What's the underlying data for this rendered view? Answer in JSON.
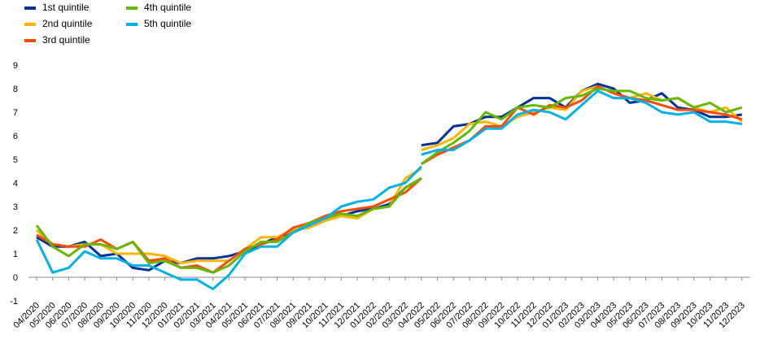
{
  "chart_data": {
    "type": "line",
    "categories": [
      "04/2020",
      "05/2020",
      "06/2020",
      "07/2020",
      "08/2020",
      "09/2020",
      "10/2020",
      "11/2020",
      "12/2020",
      "01/2021",
      "02/2021",
      "03/2021",
      "04/2021",
      "05/2021",
      "06/2021",
      "07/2021",
      "08/2021",
      "09/2021",
      "10/2021",
      "11/2021",
      "12/2021",
      "01/2022",
      "02/2022",
      "03/2022",
      "04/2022",
      "05/2022",
      "06/2022",
      "07/2022",
      "08/2022",
      "09/2022",
      "10/2022",
      "11/2022",
      "12/2022",
      "01/2023",
      "02/2023",
      "03/2023",
      "04/2023",
      "05/2023",
      "06/2023",
      "07/2023",
      "08/2023",
      "09/2023",
      "10/2023",
      "11/2023",
      "12/2023"
    ],
    "series": [
      {
        "name": "1st quintile",
        "color": "#003299",
        "values": [
          1.7,
          1.3,
          1.3,
          1.5,
          0.9,
          1.0,
          0.4,
          0.3,
          0.7,
          0.6,
          0.8,
          0.8,
          0.9,
          1.1,
          1.4,
          1.7,
          1.9,
          2.2,
          2.4,
          2.6,
          2.8,
          2.9,
          3.1,
          3.8,
          4.2,
          null,
          null,
          null,
          null,
          null,
          null,
          null,
          null,
          null,
          null,
          null,
          null,
          null,
          null,
          null,
          null,
          null,
          null,
          null,
          null
        ],
        "values_new": [
          null,
          null,
          null,
          null,
          null,
          null,
          null,
          null,
          null,
          null,
          null,
          null,
          null,
          null,
          null,
          null,
          null,
          null,
          null,
          null,
          null,
          null,
          null,
          null,
          5.6,
          5.7,
          6.4,
          6.5,
          6.8,
          6.8,
          7.2,
          7.6,
          7.6,
          7.2,
          7.9,
          8.2,
          8.0,
          7.4,
          7.5,
          7.8,
          7.2,
          7.1,
          6.8,
          6.8,
          6.9
        ]
      },
      {
        "name": "2nd quintile",
        "color": "#ffb400",
        "values": [
          2.0,
          1.4,
          1.3,
          1.4,
          1.4,
          1.0,
          1.0,
          1.0,
          0.9,
          0.6,
          0.7,
          0.7,
          0.7,
          1.2,
          1.7,
          1.7,
          2.0,
          2.1,
          2.4,
          2.6,
          2.5,
          2.9,
          3.0,
          4.2,
          4.6,
          null,
          null,
          null,
          null,
          null,
          null,
          null,
          null,
          null,
          null,
          null,
          null,
          null,
          null,
          null,
          null,
          null,
          null,
          null,
          null
        ],
        "values_new": [
          null,
          null,
          null,
          null,
          null,
          null,
          null,
          null,
          null,
          null,
          null,
          null,
          null,
          null,
          null,
          null,
          null,
          null,
          null,
          null,
          null,
          null,
          null,
          null,
          5.4,
          5.6,
          5.9,
          6.5,
          6.6,
          6.4,
          6.8,
          7.0,
          7.2,
          7.1,
          7.9,
          8.1,
          7.8,
          7.6,
          7.8,
          7.5,
          7.6,
          7.2,
          7.0,
          7.2,
          6.6
        ]
      },
      {
        "name": "3rd quintile",
        "color": "#ff4b00",
        "values": [
          1.8,
          1.4,
          1.3,
          1.3,
          1.6,
          1.2,
          1.5,
          0.7,
          0.8,
          0.4,
          0.5,
          0.2,
          0.7,
          1.2,
          1.4,
          1.6,
          2.1,
          2.3,
          2.6,
          2.8,
          2.9,
          3.0,
          3.3,
          3.6,
          4.2,
          null,
          null,
          null,
          null,
          null,
          null,
          null,
          null,
          null,
          null,
          null,
          null,
          null,
          null,
          null,
          null,
          null,
          null,
          null,
          null
        ],
        "values_new": [
          null,
          null,
          null,
          null,
          null,
          null,
          null,
          null,
          null,
          null,
          null,
          null,
          null,
          null,
          null,
          null,
          null,
          null,
          null,
          null,
          null,
          null,
          null,
          null,
          4.8,
          5.2,
          5.5,
          5.8,
          6.4,
          6.4,
          7.2,
          6.9,
          7.3,
          7.2,
          7.5,
          8.1,
          7.8,
          7.6,
          7.5,
          7.3,
          7.1,
          7.1,
          7.0,
          6.9,
          6.7
        ]
      },
      {
        "name": "4th quintile",
        "color": "#65b800",
        "values": [
          2.2,
          1.3,
          0.9,
          1.4,
          1.4,
          1.2,
          1.5,
          0.6,
          0.7,
          0.4,
          0.4,
          0.2,
          0.5,
          1.1,
          1.5,
          1.5,
          1.9,
          2.3,
          2.5,
          2.7,
          2.6,
          2.9,
          3.0,
          3.8,
          4.2,
          null,
          null,
          null,
          null,
          null,
          null,
          null,
          null,
          null,
          null,
          null,
          null,
          null,
          null,
          null,
          null,
          null,
          null,
          null,
          null
        ],
        "values_new": [
          null,
          null,
          null,
          null,
          null,
          null,
          null,
          null,
          null,
          null,
          null,
          null,
          null,
          null,
          null,
          null,
          null,
          null,
          null,
          null,
          null,
          null,
          null,
          null,
          4.8,
          5.3,
          5.7,
          6.2,
          7.0,
          6.7,
          7.2,
          7.3,
          7.2,
          7.6,
          7.7,
          8.0,
          7.9,
          7.9,
          7.6,
          7.5,
          7.6,
          7.2,
          7.4,
          7.0,
          7.2
        ]
      },
      {
        "name": "5th quintile",
        "color": "#00b1ea",
        "values": [
          1.6,
          0.2,
          0.4,
          1.1,
          0.8,
          0.8,
          0.5,
          0.5,
          0.2,
          -0.1,
          -0.1,
          -0.5,
          0.1,
          1.0,
          1.3,
          1.3,
          1.9,
          2.2,
          2.5,
          3.0,
          3.2,
          3.3,
          3.8,
          4.0,
          4.7,
          null,
          null,
          null,
          null,
          null,
          null,
          null,
          null,
          null,
          null,
          null,
          null,
          null,
          null,
          null,
          null,
          null,
          null,
          null,
          null
        ],
        "values_new": [
          null,
          null,
          null,
          null,
          null,
          null,
          null,
          null,
          null,
          null,
          null,
          null,
          null,
          null,
          null,
          null,
          null,
          null,
          null,
          null,
          null,
          null,
          null,
          null,
          5.2,
          5.4,
          5.4,
          5.8,
          6.3,
          6.3,
          6.9,
          7.1,
          7.0,
          6.7,
          7.3,
          7.9,
          7.6,
          7.6,
          7.4,
          7.0,
          6.9,
          7.0,
          6.6,
          6.6,
          6.5
        ]
      }
    ],
    "ylim": [
      -1,
      9
    ],
    "yticks": [
      -1,
      0,
      1,
      2,
      3,
      4,
      5,
      6,
      7,
      8,
      9
    ],
    "grid": false
  }
}
